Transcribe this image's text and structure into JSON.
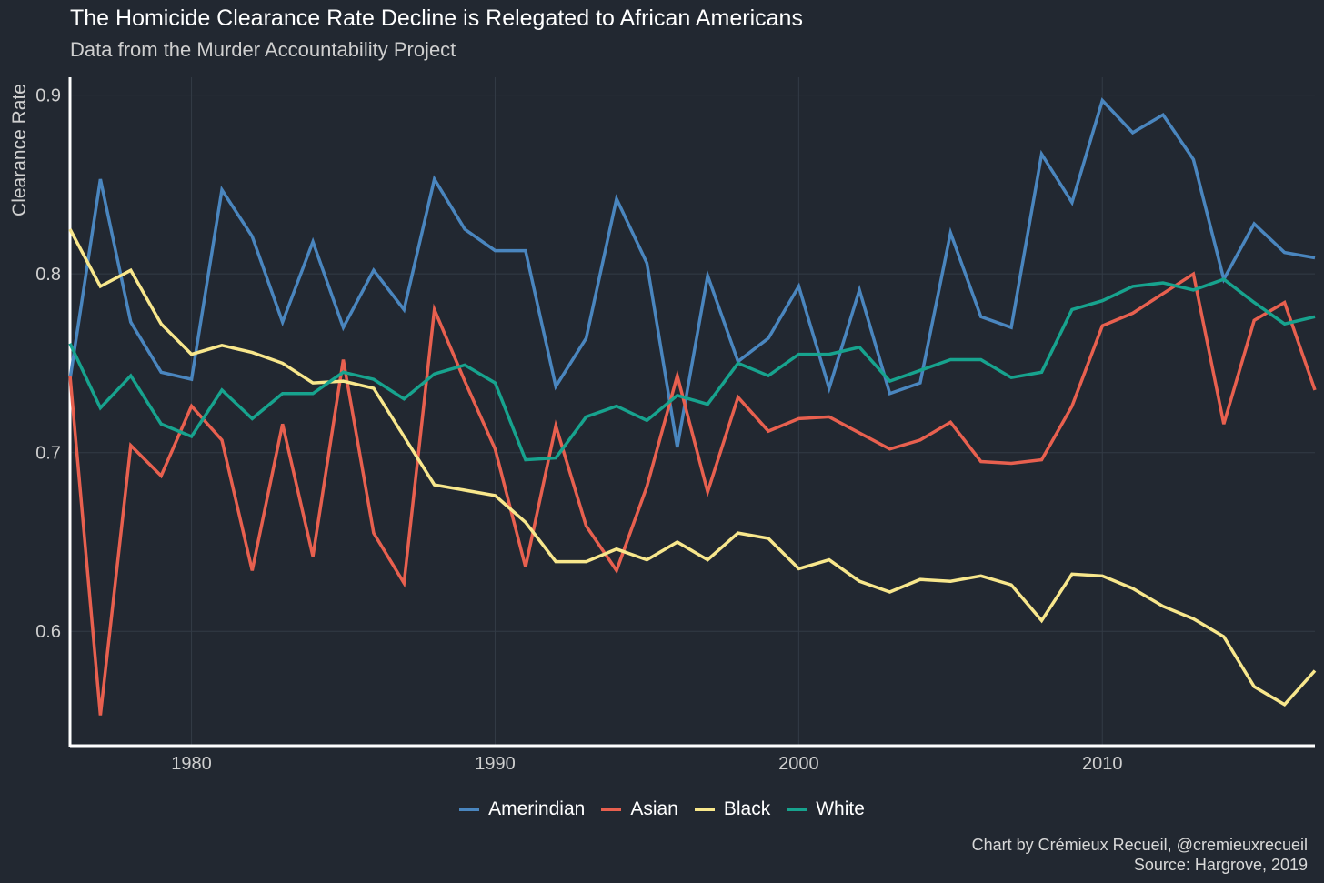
{
  "chart_data": {
    "type": "line",
    "title": "The Homicide Clearance Rate Decline is Relegated to African Americans",
    "subtitle": "Data from the Murder Accountability Project",
    "xlabel": "",
    "ylabel": "Clearance Rate",
    "xlim": [
      1976,
      2017
    ],
    "ylim": [
      0.536,
      0.91
    ],
    "x_ticks": [
      1980,
      1990,
      2000,
      2010
    ],
    "x_tick_labels": [
      "1980",
      "1990",
      "2000",
      "2010"
    ],
    "y_ticks": [
      0.6,
      0.7,
      0.8,
      0.9
    ],
    "y_tick_labels": [
      "0.6",
      "0.7",
      "0.8",
      "0.9"
    ],
    "grid": true,
    "legend_position": "bottom",
    "x": [
      1976,
      1977,
      1978,
      1979,
      1980,
      1981,
      1982,
      1983,
      1984,
      1985,
      1986,
      1987,
      1988,
      1989,
      1990,
      1991,
      1992,
      1993,
      1994,
      1995,
      1996,
      1997,
      1998,
      1999,
      2000,
      2001,
      2002,
      2003,
      2004,
      2005,
      2006,
      2007,
      2008,
      2009,
      2010,
      2011,
      2012,
      2013,
      2014,
      2015,
      2016,
      2017
    ],
    "series": [
      {
        "name": "Amerindian",
        "color": "#4a86bf",
        "values": [
          0.741,
          0.853,
          0.773,
          0.745,
          0.741,
          0.847,
          0.821,
          0.773,
          0.818,
          0.77,
          0.802,
          0.78,
          0.853,
          0.825,
          0.813,
          0.813,
          0.737,
          0.764,
          0.842,
          0.806,
          0.703,
          0.799,
          0.751,
          0.764,
          0.793,
          0.736,
          0.791,
          0.733,
          0.739,
          0.823,
          0.776,
          0.77,
          0.867,
          0.84,
          0.897,
          0.879,
          0.889,
          0.864,
          0.797,
          0.828,
          0.812,
          0.809
        ]
      },
      {
        "name": "Asian",
        "color": "#e8604f",
        "values": [
          0.743,
          0.553,
          0.704,
          0.687,
          0.726,
          0.707,
          0.634,
          0.716,
          0.642,
          0.752,
          0.655,
          0.627,
          0.78,
          0.74,
          0.702,
          0.636,
          0.715,
          0.659,
          0.634,
          0.681,
          0.743,
          0.678,
          0.731,
          0.712,
          0.719,
          0.72,
          0.711,
          0.702,
          0.707,
          0.717,
          0.695,
          0.694,
          0.696,
          0.726,
          0.771,
          0.778,
          0.789,
          0.8,
          0.716,
          0.774,
          0.784,
          0.735
        ]
      },
      {
        "name": "Black",
        "color": "#f8e78c",
        "values": [
          0.825,
          0.793,
          0.802,
          0.772,
          0.755,
          0.76,
          0.756,
          0.75,
          0.739,
          0.74,
          0.736,
          0.709,
          0.682,
          0.679,
          0.676,
          0.661,
          0.639,
          0.639,
          0.646,
          0.64,
          0.65,
          0.64,
          0.655,
          0.652,
          0.635,
          0.64,
          0.628,
          0.622,
          0.629,
          0.628,
          0.631,
          0.626,
          0.606,
          0.632,
          0.631,
          0.624,
          0.614,
          0.607,
          0.597,
          0.569,
          0.559,
          0.578
        ]
      },
      {
        "name": "White",
        "color": "#17a38e",
        "values": [
          0.761,
          0.725,
          0.743,
          0.716,
          0.709,
          0.735,
          0.719,
          0.733,
          0.733,
          0.745,
          0.741,
          0.73,
          0.744,
          0.749,
          0.739,
          0.696,
          0.697,
          0.72,
          0.726,
          0.718,
          0.732,
          0.727,
          0.75,
          0.743,
          0.755,
          0.755,
          0.759,
          0.74,
          0.746,
          0.752,
          0.752,
          0.742,
          0.745,
          0.78,
          0.785,
          0.793,
          0.795,
          0.791,
          0.797,
          0.784,
          0.772,
          0.776
        ]
      }
    ],
    "caption_lines": [
      "Chart by Crémieux Recueil, @cremieuxrecueil",
      "Source: Hargrove, 2019"
    ]
  }
}
